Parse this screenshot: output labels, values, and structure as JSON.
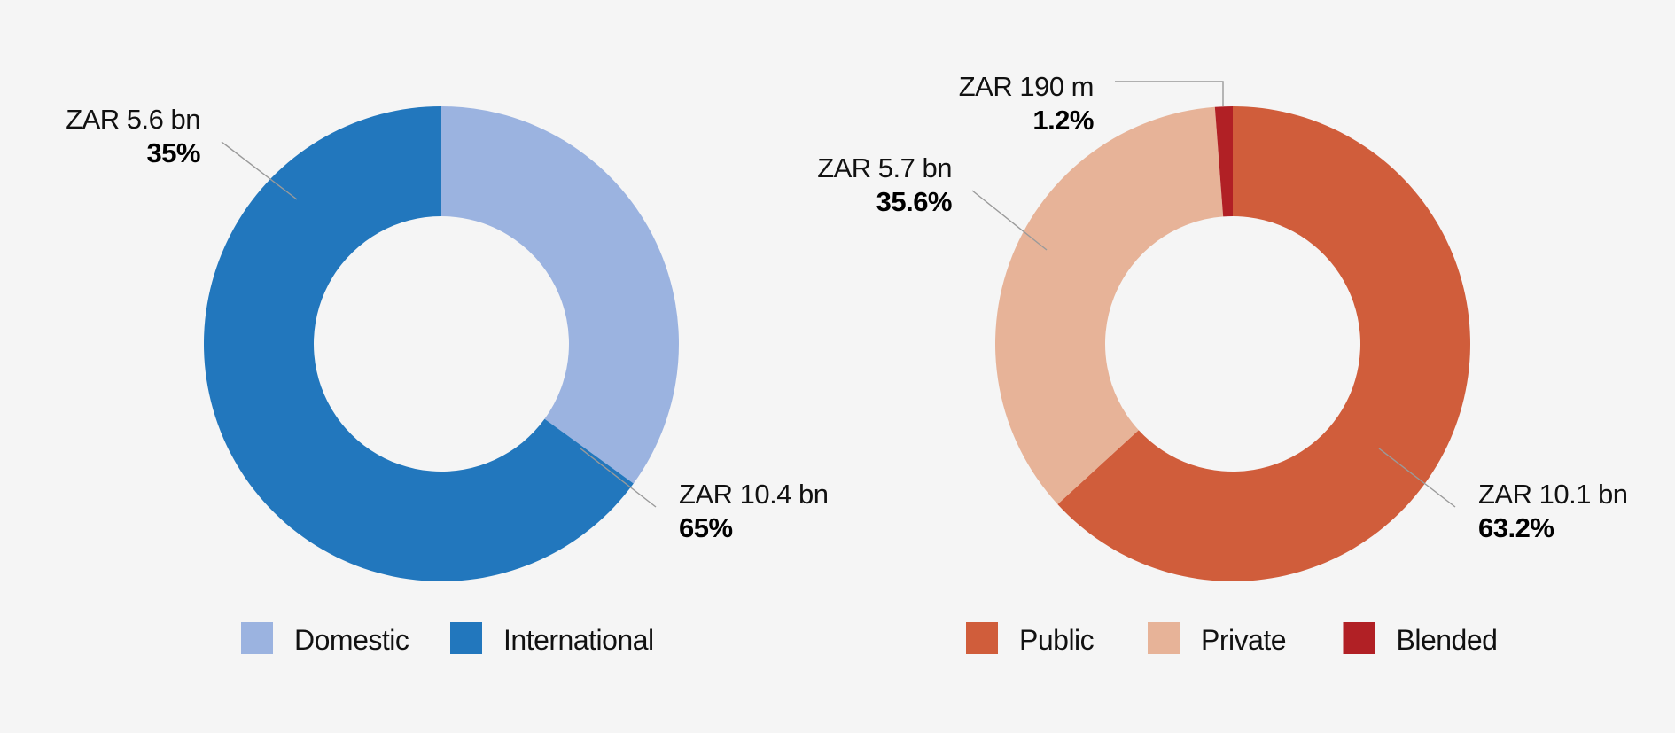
{
  "chart_data": [
    {
      "type": "pie",
      "donut": true,
      "categories": [
        "Domestic",
        "International"
      ],
      "values": [
        35,
        65
      ],
      "amounts": [
        "ZAR 5.6 bn",
        "ZAR 10.4 bn"
      ],
      "percent_labels": [
        "35%",
        "65%"
      ],
      "colors": [
        "#9bb3e0",
        "#2277bd"
      ],
      "legend": [
        "Domestic",
        "International"
      ],
      "legend_position": "bottom"
    },
    {
      "type": "pie",
      "donut": true,
      "categories": [
        "Public",
        "Private",
        "Blended"
      ],
      "values": [
        63.2,
        35.6,
        1.2
      ],
      "amounts": [
        "ZAR 10.1 bn",
        "ZAR 5.7 bn",
        "ZAR 190 m"
      ],
      "percent_labels": [
        "63.2%",
        "35.6%",
        "1.2%"
      ],
      "colors": [
        "#d05d3b",
        "#e7b398",
        "#b12025"
      ],
      "legend": [
        "Public",
        "Private",
        "Blended"
      ],
      "legend_position": "bottom"
    }
  ]
}
